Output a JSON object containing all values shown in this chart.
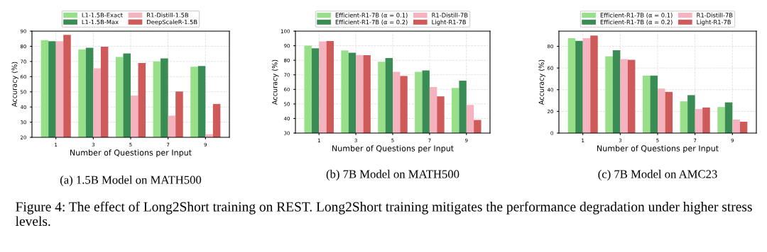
{
  "chart_data": [
    {
      "type": "bar",
      "title": "(a) 1.5B Model on MATH500",
      "xlabel": "Number of Questions per Input",
      "ylabel": "Accuracy (%)",
      "categories": [
        "1",
        "3",
        "5",
        "7",
        "9"
      ],
      "ylim": [
        20,
        90
      ],
      "yticks": [
        20,
        30,
        40,
        50,
        60,
        70,
        80,
        90
      ],
      "grid": true,
      "legend": "top",
      "annotations": [
        "Figure 4: The effect of Long2Short training on REST. Long2Short training mitigates the performance degradation under higher stress levels."
      ],
      "series": [
        {
          "name": "L1-1.5B-Exact",
          "color": "#98df8a",
          "values": [
            84,
            78,
            73,
            70,
            66.5
          ]
        },
        {
          "name": "L1-1.5B-Max",
          "color": "#3a8c55",
          "values": [
            83.3,
            79,
            75.3,
            72,
            67
          ]
        },
        {
          "name": "R1-Distill-1.5B",
          "color": "#f5b3bf",
          "values": [
            83.3,
            65.5,
            47.5,
            34.3,
            22
          ]
        },
        {
          "name": "DeepScaleR-1.5B",
          "color": "#cf5a5a",
          "values": [
            87.5,
            79.7,
            69,
            50.2,
            42
          ]
        }
      ]
    },
    {
      "type": "bar",
      "title": "(b) 7B Model on MATH500",
      "xlabel": "Number of Questions per Input",
      "ylabel": "Accuracy (%)",
      "categories": [
        "1",
        "3",
        "5",
        "7",
        "9"
      ],
      "ylim": [
        30,
        100
      ],
      "yticks": [
        30,
        40,
        50,
        60,
        70,
        80,
        90,
        100
      ],
      "grid": true,
      "legend": "top",
      "series": [
        {
          "name": "Efficient-R1-7B (α = 0.1)",
          "color": "#98df8a",
          "values": [
            90,
            86.8,
            79,
            72,
            61
          ]
        },
        {
          "name": "Efficient-R1-7B (α = 0.2)",
          "color": "#3a8c55",
          "values": [
            88.2,
            85.2,
            81.5,
            73,
            66
          ]
        },
        {
          "name": "R1-Distill-7B",
          "color": "#f5b3bf",
          "values": [
            93,
            83.6,
            72,
            61.6,
            49.3
          ]
        },
        {
          "name": "Light-R1-7B",
          "color": "#cf5a5a",
          "values": [
            93.2,
            83.5,
            69.2,
            55.2,
            39
          ]
        }
      ]
    },
    {
      "type": "bar",
      "title": "(c) 7B Model on AMC23",
      "xlabel": "Number of Questions per Input",
      "ylabel": "Accuracy (%)",
      "categories": [
        "1",
        "3",
        "5",
        "7",
        "9"
      ],
      "ylim": [
        0,
        94
      ],
      "yticks": [
        0,
        20,
        40,
        60,
        80
      ],
      "grid": true,
      "legend": "top",
      "series": [
        {
          "name": "Efficient-R1-7B (α = 0.1)",
          "color": "#98df8a",
          "values": [
            87.5,
            70.8,
            53,
            29.3,
            24
          ]
        },
        {
          "name": "Efficient-R1-7B (α = 0.2)",
          "color": "#3a8c55",
          "values": [
            85,
            76.3,
            53,
            35,
            28.3
          ]
        },
        {
          "name": "R1-Distill-7B",
          "color": "#f5b3bf",
          "values": [
            87.5,
            68.2,
            41,
            22.2,
            12.5
          ]
        },
        {
          "name": "Light-R1-7B",
          "color": "#cf5a5a",
          "values": [
            90,
            67.5,
            38,
            23.6,
            10.5
          ]
        }
      ]
    }
  ]
}
